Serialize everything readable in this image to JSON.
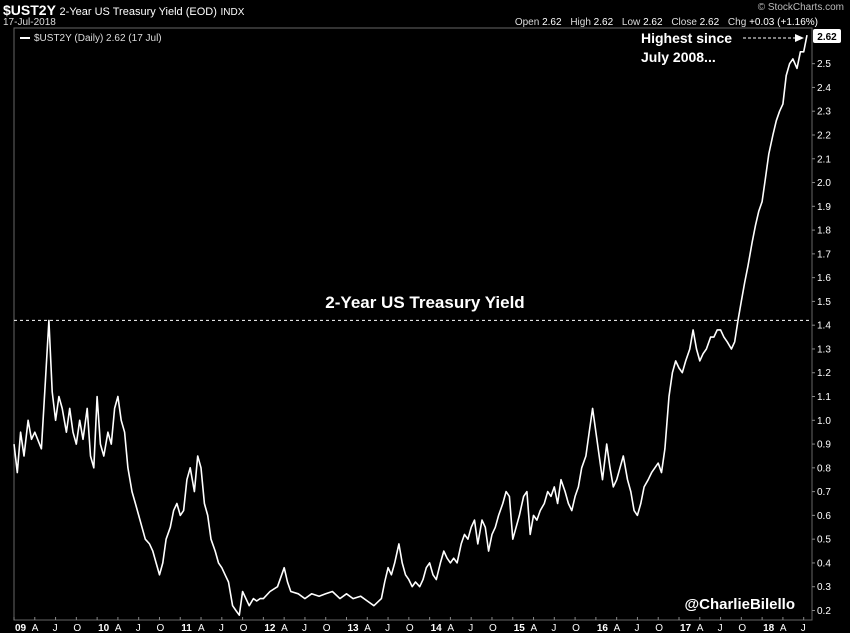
{
  "header": {
    "symbol": "$UST2Y",
    "description": "2-Year US Treasury Yield (EOD)",
    "exchange": "INDX",
    "date": "17-Jul-2018",
    "brand": "© StockCharts.com",
    "ohlc": {
      "open_label": "Open",
      "open": "2.62",
      "high_label": "High",
      "high": "2.62",
      "low_label": "Low",
      "low": "2.62",
      "close_label": "Close",
      "close": "2.62",
      "chg_label": "Chg",
      "chg": "+0.03 (+1.16%)"
    }
  },
  "legend": "$UST2Y (Daily) 2.62 (17 Jul)",
  "annotation_lines": [
    "Highest since",
    "July 2008..."
  ],
  "credit": "@CharlieBilello",
  "last_value_label": "2.62",
  "colors": {
    "background": "#000000",
    "line": "#ffffff",
    "grid": "#4a4a4a"
  },
  "chart_data": {
    "type": "line",
    "title": "2-Year US Treasury Yield",
    "series": [
      {
        "values": [
          [
            2009.0,
            0.9
          ],
          [
            2009.04,
            0.78
          ],
          [
            2009.08,
            0.95
          ],
          [
            2009.12,
            0.85
          ],
          [
            2009.17,
            1.0
          ],
          [
            2009.21,
            0.92
          ],
          [
            2009.25,
            0.95
          ],
          [
            2009.33,
            0.88
          ],
          [
            2009.38,
            1.18
          ],
          [
            2009.42,
            1.42
          ],
          [
            2009.46,
            1.12
          ],
          [
            2009.5,
            1.0
          ],
          [
            2009.54,
            1.1
          ],
          [
            2009.58,
            1.05
          ],
          [
            2009.63,
            0.95
          ],
          [
            2009.67,
            1.05
          ],
          [
            2009.71,
            0.95
          ],
          [
            2009.75,
            0.9
          ],
          [
            2009.79,
            1.0
          ],
          [
            2009.83,
            0.92
          ],
          [
            2009.88,
            1.05
          ],
          [
            2009.92,
            0.85
          ],
          [
            2009.96,
            0.8
          ],
          [
            2010.0,
            1.1
          ],
          [
            2010.04,
            0.9
          ],
          [
            2010.08,
            0.85
          ],
          [
            2010.13,
            0.95
          ],
          [
            2010.17,
            0.9
          ],
          [
            2010.21,
            1.05
          ],
          [
            2010.25,
            1.1
          ],
          [
            2010.29,
            1.0
          ],
          [
            2010.33,
            0.95
          ],
          [
            2010.37,
            0.8
          ],
          [
            2010.42,
            0.7
          ],
          [
            2010.46,
            0.65
          ],
          [
            2010.5,
            0.6
          ],
          [
            2010.54,
            0.55
          ],
          [
            2010.58,
            0.5
          ],
          [
            2010.63,
            0.48
          ],
          [
            2010.67,
            0.45
          ],
          [
            2010.71,
            0.4
          ],
          [
            2010.75,
            0.35
          ],
          [
            2010.79,
            0.4
          ],
          [
            2010.83,
            0.5
          ],
          [
            2010.88,
            0.55
          ],
          [
            2010.92,
            0.62
          ],
          [
            2010.96,
            0.65
          ],
          [
            2011.0,
            0.6
          ],
          [
            2011.04,
            0.62
          ],
          [
            2011.08,
            0.75
          ],
          [
            2011.12,
            0.8
          ],
          [
            2011.17,
            0.7
          ],
          [
            2011.21,
            0.85
          ],
          [
            2011.25,
            0.8
          ],
          [
            2011.29,
            0.65
          ],
          [
            2011.33,
            0.6
          ],
          [
            2011.37,
            0.5
          ],
          [
            2011.42,
            0.45
          ],
          [
            2011.46,
            0.4
          ],
          [
            2011.5,
            0.38
          ],
          [
            2011.54,
            0.35
          ],
          [
            2011.58,
            0.32
          ],
          [
            2011.63,
            0.22
          ],
          [
            2011.67,
            0.2
          ],
          [
            2011.71,
            0.18
          ],
          [
            2011.75,
            0.28
          ],
          [
            2011.79,
            0.25
          ],
          [
            2011.83,
            0.22
          ],
          [
            2011.88,
            0.25
          ],
          [
            2011.92,
            0.24
          ],
          [
            2011.96,
            0.25
          ],
          [
            2012.0,
            0.25
          ],
          [
            2012.08,
            0.28
          ],
          [
            2012.17,
            0.3
          ],
          [
            2012.25,
            0.38
          ],
          [
            2012.29,
            0.32
          ],
          [
            2012.33,
            0.28
          ],
          [
            2012.42,
            0.27
          ],
          [
            2012.5,
            0.25
          ],
          [
            2012.58,
            0.27
          ],
          [
            2012.67,
            0.26
          ],
          [
            2012.75,
            0.27
          ],
          [
            2012.83,
            0.28
          ],
          [
            2012.92,
            0.25
          ],
          [
            2013.0,
            0.27
          ],
          [
            2013.08,
            0.25
          ],
          [
            2013.17,
            0.26
          ],
          [
            2013.25,
            0.24
          ],
          [
            2013.33,
            0.22
          ],
          [
            2013.42,
            0.25
          ],
          [
            2013.46,
            0.32
          ],
          [
            2013.5,
            0.38
          ],
          [
            2013.54,
            0.35
          ],
          [
            2013.58,
            0.4
          ],
          [
            2013.63,
            0.48
          ],
          [
            2013.67,
            0.4
          ],
          [
            2013.71,
            0.35
          ],
          [
            2013.75,
            0.33
          ],
          [
            2013.79,
            0.3
          ],
          [
            2013.83,
            0.32
          ],
          [
            2013.88,
            0.3
          ],
          [
            2013.92,
            0.33
          ],
          [
            2013.96,
            0.38
          ],
          [
            2014.0,
            0.4
          ],
          [
            2014.04,
            0.35
          ],
          [
            2014.08,
            0.33
          ],
          [
            2014.13,
            0.4
          ],
          [
            2014.17,
            0.45
          ],
          [
            2014.21,
            0.42
          ],
          [
            2014.25,
            0.4
          ],
          [
            2014.29,
            0.42
          ],
          [
            2014.33,
            0.4
          ],
          [
            2014.38,
            0.48
          ],
          [
            2014.42,
            0.52
          ],
          [
            2014.46,
            0.5
          ],
          [
            2014.5,
            0.55
          ],
          [
            2014.54,
            0.58
          ],
          [
            2014.58,
            0.48
          ],
          [
            2014.63,
            0.58
          ],
          [
            2014.67,
            0.55
          ],
          [
            2014.71,
            0.45
          ],
          [
            2014.75,
            0.52
          ],
          [
            2014.79,
            0.55
          ],
          [
            2014.83,
            0.6
          ],
          [
            2014.88,
            0.65
          ],
          [
            2014.92,
            0.7
          ],
          [
            2014.96,
            0.68
          ],
          [
            2015.0,
            0.5
          ],
          [
            2015.04,
            0.55
          ],
          [
            2015.08,
            0.6
          ],
          [
            2015.13,
            0.68
          ],
          [
            2015.17,
            0.7
          ],
          [
            2015.21,
            0.52
          ],
          [
            2015.25,
            0.6
          ],
          [
            2015.29,
            0.58
          ],
          [
            2015.33,
            0.62
          ],
          [
            2015.38,
            0.65
          ],
          [
            2015.42,
            0.7
          ],
          [
            2015.46,
            0.68
          ],
          [
            2015.5,
            0.72
          ],
          [
            2015.54,
            0.65
          ],
          [
            2015.58,
            0.75
          ],
          [
            2015.63,
            0.7
          ],
          [
            2015.67,
            0.65
          ],
          [
            2015.71,
            0.62
          ],
          [
            2015.75,
            0.68
          ],
          [
            2015.79,
            0.72
          ],
          [
            2015.83,
            0.8
          ],
          [
            2015.88,
            0.85
          ],
          [
            2015.92,
            0.95
          ],
          [
            2015.96,
            1.05
          ],
          [
            2016.0,
            0.95
          ],
          [
            2016.04,
            0.85
          ],
          [
            2016.08,
            0.75
          ],
          [
            2016.13,
            0.9
          ],
          [
            2016.17,
            0.8
          ],
          [
            2016.21,
            0.72
          ],
          [
            2016.25,
            0.75
          ],
          [
            2016.29,
            0.8
          ],
          [
            2016.33,
            0.85
          ],
          [
            2016.38,
            0.75
          ],
          [
            2016.42,
            0.7
          ],
          [
            2016.46,
            0.62
          ],
          [
            2016.5,
            0.6
          ],
          [
            2016.54,
            0.65
          ],
          [
            2016.58,
            0.72
          ],
          [
            2016.63,
            0.75
          ],
          [
            2016.67,
            0.78
          ],
          [
            2016.71,
            0.8
          ],
          [
            2016.75,
            0.82
          ],
          [
            2016.79,
            0.78
          ],
          [
            2016.83,
            0.88
          ],
          [
            2016.88,
            1.1
          ],
          [
            2016.92,
            1.2
          ],
          [
            2016.96,
            1.25
          ],
          [
            2017.0,
            1.22
          ],
          [
            2017.04,
            1.2
          ],
          [
            2017.08,
            1.25
          ],
          [
            2017.13,
            1.3
          ],
          [
            2017.17,
            1.38
          ],
          [
            2017.21,
            1.3
          ],
          [
            2017.25,
            1.25
          ],
          [
            2017.29,
            1.28
          ],
          [
            2017.33,
            1.3
          ],
          [
            2017.38,
            1.35
          ],
          [
            2017.42,
            1.35
          ],
          [
            2017.46,
            1.38
          ],
          [
            2017.5,
            1.38
          ],
          [
            2017.54,
            1.35
          ],
          [
            2017.58,
            1.33
          ],
          [
            2017.63,
            1.3
          ],
          [
            2017.67,
            1.33
          ],
          [
            2017.71,
            1.42
          ],
          [
            2017.75,
            1.5
          ],
          [
            2017.79,
            1.58
          ],
          [
            2017.83,
            1.65
          ],
          [
            2017.88,
            1.75
          ],
          [
            2017.92,
            1.82
          ],
          [
            2017.96,
            1.88
          ],
          [
            2018.0,
            1.92
          ],
          [
            2018.04,
            2.02
          ],
          [
            2018.08,
            2.12
          ],
          [
            2018.13,
            2.2
          ],
          [
            2018.17,
            2.26
          ],
          [
            2018.21,
            2.3
          ],
          [
            2018.25,
            2.33
          ],
          [
            2018.29,
            2.45
          ],
          [
            2018.33,
            2.5
          ],
          [
            2018.37,
            2.52
          ],
          [
            2018.42,
            2.48
          ],
          [
            2018.46,
            2.55
          ],
          [
            2018.5,
            2.55
          ],
          [
            2018.54,
            2.62
          ]
        ]
      }
    ],
    "xlim": [
      2009.0,
      2018.6
    ],
    "ylim": [
      0.16,
      2.65
    ],
    "y_ticks": [
      0.2,
      0.3,
      0.4,
      0.5,
      0.6,
      0.7,
      0.8,
      0.9,
      1.0,
      1.1,
      1.2,
      1.3,
      1.4,
      1.5,
      1.6,
      1.7,
      1.8,
      1.9,
      2.0,
      2.1,
      2.2,
      2.3,
      2.4,
      2.5
    ],
    "x_ticks": [
      {
        "label": "09",
        "x": 2009.0,
        "year": true
      },
      {
        "label": "A",
        "x": 2009.25
      },
      {
        "label": "J",
        "x": 2009.5
      },
      {
        "label": "O",
        "x": 2009.75
      },
      {
        "label": "10",
        "x": 2010.0,
        "year": true
      },
      {
        "label": "A",
        "x": 2010.25
      },
      {
        "label": "J",
        "x": 2010.5
      },
      {
        "label": "O",
        "x": 2010.75
      },
      {
        "label": "11",
        "x": 2011.0,
        "year": true
      },
      {
        "label": "A",
        "x": 2011.25
      },
      {
        "label": "J",
        "x": 2011.5
      },
      {
        "label": "O",
        "x": 2011.75
      },
      {
        "label": "12",
        "x": 2012.0,
        "year": true
      },
      {
        "label": "A",
        "x": 2012.25
      },
      {
        "label": "J",
        "x": 2012.5
      },
      {
        "label": "O",
        "x": 2012.75
      },
      {
        "label": "13",
        "x": 2013.0,
        "year": true
      },
      {
        "label": "A",
        "x": 2013.25
      },
      {
        "label": "J",
        "x": 2013.5
      },
      {
        "label": "O",
        "x": 2013.75
      },
      {
        "label": "14",
        "x": 2014.0,
        "year": true
      },
      {
        "label": "A",
        "x": 2014.25
      },
      {
        "label": "J",
        "x": 2014.5
      },
      {
        "label": "O",
        "x": 2014.75
      },
      {
        "label": "15",
        "x": 2015.0,
        "year": true
      },
      {
        "label": "A",
        "x": 2015.25
      },
      {
        "label": "J",
        "x": 2015.5
      },
      {
        "label": "O",
        "x": 2015.75
      },
      {
        "label": "16",
        "x": 2016.0,
        "year": true
      },
      {
        "label": "A",
        "x": 2016.25
      },
      {
        "label": "J",
        "x": 2016.5
      },
      {
        "label": "O",
        "x": 2016.75
      },
      {
        "label": "17",
        "x": 2017.0,
        "year": true
      },
      {
        "label": "A",
        "x": 2017.25
      },
      {
        "label": "J",
        "x": 2017.5
      },
      {
        "label": "O",
        "x": 2017.75
      },
      {
        "label": "18",
        "x": 2018.0,
        "year": true
      },
      {
        "label": "A",
        "x": 2018.25
      },
      {
        "label": "J",
        "x": 2018.5
      }
    ],
    "reference_line": 1.42,
    "grid": false,
    "legend_position": "top-left"
  }
}
